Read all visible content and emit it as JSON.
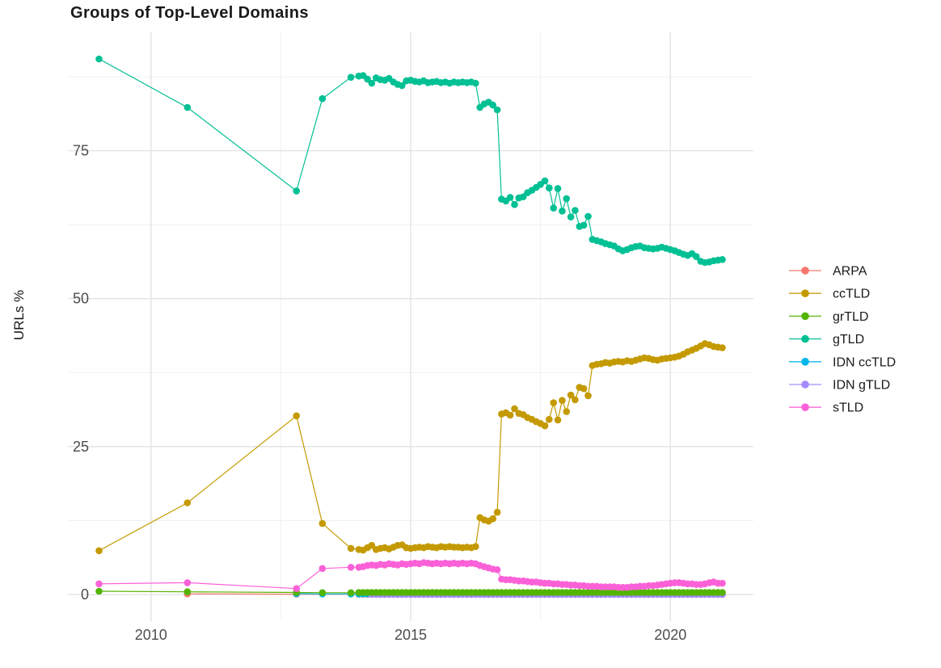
{
  "chart_data": {
    "type": "line",
    "title": "Groups of Top-Level Domains",
    "xlabel": "",
    "ylabel": "URLs %",
    "grid": true,
    "legend_position": "right",
    "x_axis": {
      "ticks": [
        2010,
        2015,
        2020
      ],
      "minor": [
        2012.5,
        2017.5
      ],
      "range": [
        2008.4,
        2021.6
      ]
    },
    "y_axis": {
      "ticks": [
        0,
        25,
        50,
        75
      ],
      "minor": [
        12.5,
        37.5,
        62.5,
        87.5
      ],
      "range": [
        -4.5,
        95
      ]
    },
    "axis_text_color": "#4d4d4d",
    "grid_major_color": "#e3e3e3",
    "grid_minor_color": "#f0f0f0",
    "legend_order": [
      "ARPA",
      "ccTLD",
      "grTLD",
      "gTLD",
      "IDN ccTLD",
      "IDN gTLD",
      "sTLD"
    ],
    "series": [
      {
        "name": "ARPA",
        "color": "#F8766D",
        "points": [
          [
            2010.7,
            0.12
          ],
          [
            2012.8,
            0.06
          ]
        ],
        "flat": {
          "x0": 2014.0,
          "dx": 0.083333,
          "n": 85,
          "y": 0.05
        }
      },
      {
        "name": "IDN ccTLD",
        "color": "#00B6EB",
        "points": [
          [
            2012.8,
            0.15
          ],
          [
            2013.3,
            0.1
          ],
          [
            2013.85,
            0.1
          ]
        ],
        "flat": {
          "x0": 2014.0,
          "dx": 0.083333,
          "n": 85,
          "y": 0.1
        }
      },
      {
        "name": "IDN gTLD",
        "color": "#A58AFF",
        "points": [],
        "flat": {
          "x0": 2014.25,
          "dx": 0.083333,
          "n": 82,
          "y": 0.0
        }
      },
      {
        "name": "grTLD",
        "color": "#53B400",
        "points": [
          [
            2009.0,
            0.55
          ],
          [
            2010.7,
            0.45
          ],
          [
            2012.8,
            0.35
          ],
          [
            2013.3,
            0.3
          ],
          [
            2013.85,
            0.3
          ]
        ],
        "flat": {
          "x0": 2014.0,
          "dx": 0.083333,
          "n": 85,
          "y": 0.35
        }
      },
      {
        "name": "gTLD",
        "color": "#00C094",
        "points": [
          [
            2009.0,
            90.5
          ],
          [
            2010.7,
            82.3
          ],
          [
            2012.8,
            68.2
          ],
          [
            2013.3,
            83.8
          ],
          [
            2013.85,
            87.4
          ]
        ],
        "dense": {
          "x0": 2014.0,
          "dx": 0.083333,
          "values": [
            87.6,
            87.7,
            87.1,
            86.4,
            87.3,
            87.0,
            86.9,
            87.2,
            86.6,
            86.2,
            86.0,
            86.8,
            86.9,
            86.7,
            86.6,
            86.8,
            86.5,
            86.6,
            86.7,
            86.5,
            86.6,
            86.4,
            86.6,
            86.5,
            86.6,
            86.5,
            86.6,
            86.4,
            82.3,
            82.9,
            83.2,
            82.7,
            81.9,
            66.8,
            66.5,
            67.1,
            65.9,
            67.0,
            67.2,
            67.9,
            68.3,
            68.8,
            69.3,
            69.9,
            68.7,
            65.3,
            68.6,
            64.8,
            66.9,
            63.8,
            64.9,
            62.2,
            62.4,
            63.9,
            60.0,
            59.8,
            59.6,
            59.3,
            59.1,
            58.9,
            58.4,
            58.1,
            58.3,
            58.6,
            58.8,
            58.9,
            58.6,
            58.5,
            58.4,
            58.5,
            58.7,
            58.5,
            58.3,
            58.1,
            57.8,
            57.5,
            57.3,
            57.6,
            57.1,
            56.3,
            56.1,
            56.2,
            56.4,
            56.5,
            56.6
          ]
        }
      },
      {
        "name": "ccTLD",
        "color": "#C49A00",
        "points": [
          [
            2009.0,
            7.4
          ],
          [
            2010.7,
            15.5
          ],
          [
            2012.8,
            30.2
          ],
          [
            2013.3,
            12.0
          ],
          [
            2013.85,
            7.8
          ]
        ],
        "dense": {
          "x0": 2014.0,
          "dx": 0.083333,
          "values": [
            7.6,
            7.5,
            7.9,
            8.3,
            7.6,
            7.8,
            7.9,
            7.7,
            8.0,
            8.3,
            8.4,
            7.9,
            7.8,
            7.9,
            8.0,
            7.9,
            8.1,
            8.0,
            7.9,
            8.1,
            8.0,
            8.1,
            8.0,
            8.0,
            7.9,
            8.0,
            7.9,
            8.1,
            13.0,
            12.6,
            12.4,
            12.8,
            13.9,
            30.5,
            30.7,
            30.3,
            31.4,
            30.6,
            30.4,
            29.9,
            29.6,
            29.2,
            28.9,
            28.5,
            29.6,
            32.4,
            29.5,
            32.8,
            30.9,
            33.7,
            32.9,
            35.0,
            34.8,
            33.6,
            38.7,
            38.9,
            39.0,
            39.2,
            39.1,
            39.3,
            39.4,
            39.3,
            39.5,
            39.4,
            39.6,
            39.8,
            40.0,
            39.9,
            39.7,
            39.6,
            39.8,
            39.9,
            40.0,
            40.1,
            40.3,
            40.6,
            41.0,
            41.3,
            41.6,
            42.0,
            42.4,
            42.2,
            41.9,
            41.8,
            41.7
          ]
        }
      },
      {
        "name": "sTLD",
        "color": "#FB61D7",
        "points": [
          [
            2009.0,
            1.8
          ],
          [
            2010.7,
            2.0
          ],
          [
            2012.8,
            1.0
          ],
          [
            2013.3,
            4.4
          ],
          [
            2013.85,
            4.6
          ]
        ],
        "dense": {
          "x0": 2014.0,
          "dx": 0.083333,
          "values": [
            4.6,
            4.7,
            4.9,
            5.0,
            4.9,
            5.1,
            5.0,
            5.2,
            5.1,
            5.0,
            5.2,
            5.1,
            5.2,
            5.3,
            5.2,
            5.4,
            5.3,
            5.2,
            5.3,
            5.2,
            5.3,
            5.2,
            5.3,
            5.2,
            5.3,
            5.2,
            5.3,
            5.2,
            4.9,
            4.7,
            4.5,
            4.3,
            4.2,
            2.6,
            2.5,
            2.5,
            2.4,
            2.3,
            2.3,
            2.2,
            2.1,
            2.1,
            2.0,
            1.9,
            1.9,
            1.8,
            1.8,
            1.7,
            1.7,
            1.6,
            1.6,
            1.5,
            1.5,
            1.4,
            1.4,
            1.4,
            1.3,
            1.3,
            1.3,
            1.3,
            1.2,
            1.2,
            1.2,
            1.3,
            1.3,
            1.4,
            1.4,
            1.5,
            1.5,
            1.6,
            1.7,
            1.8,
            1.9,
            2.0,
            2.0,
            1.9,
            1.8,
            1.8,
            1.7,
            1.7,
            1.8,
            2.0,
            2.1,
            1.9,
            1.9
          ]
        }
      }
    ]
  }
}
